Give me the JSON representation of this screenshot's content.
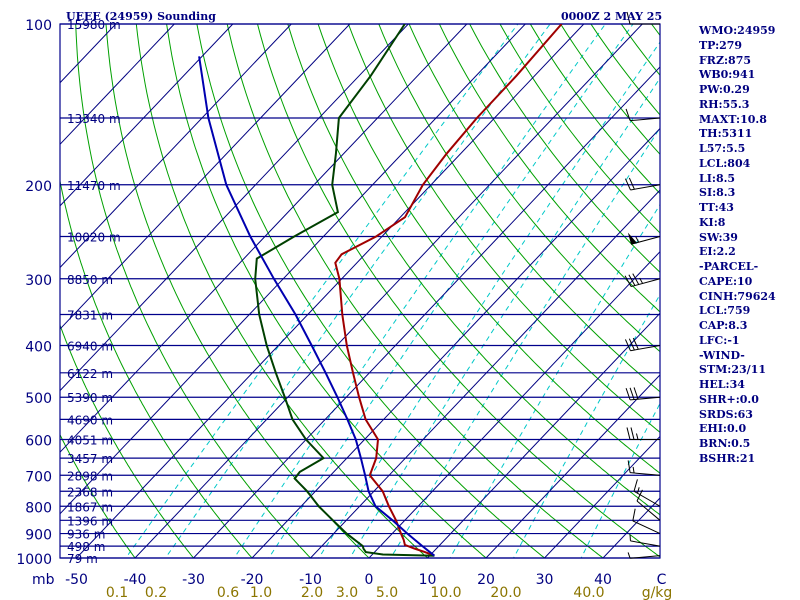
{
  "header": {
    "title_left": "UEEE (24959) Sounding",
    "title_right": "0000Z  2 MAY 25"
  },
  "indices": [
    "WMO:24959",
    "TP:279",
    "FRZ:875",
    "WB0:941",
    "PW:0.29",
    "RH:55.3",
    "MAXT:10.8",
    "TH:5311",
    "L57:5.5",
    "LCL:804",
    "LI:8.5",
    "SI:8.3",
    "TT:43",
    "KI:8",
    "SW:39",
    "EI:2.2",
    "-PARCEL-",
    "CAPE:10",
    "CINH:79624",
    "LCL:759",
    "CAP:8.3",
    "LFC:-1",
    "-WIND-",
    "STM:23/11",
    "HEL:34",
    "SHR+:0.0",
    "SRDS:63",
    "EHI:0.0",
    "BRN:0.5",
    "BSHR:21"
  ],
  "colors": {
    "isobar": "#00008b",
    "isotherm": "#000080",
    "dry_adiabat": "#00a000",
    "mixing_ratio": "#00c8c8",
    "temperature": "#a00000",
    "dewpoint": "#004000",
    "parcel": "#0000b0",
    "text": "#000080",
    "mixratio_label": "#8b7500"
  },
  "chart_data": {
    "type": "line",
    "title": "UEEE (24959) Sounding",
    "xlabel": "C",
    "ylabel": "mb",
    "ylim": [
      1000,
      100
    ],
    "xlim": [
      -50,
      50
    ],
    "grid": true,
    "pressure_ticks": [
      100,
      200,
      300,
      400,
      500,
      600,
      700,
      800,
      900,
      1000
    ],
    "temperature_ticks": [
      "-50",
      "-40",
      "-30",
      "-20",
      "-10",
      "0",
      "10",
      "20",
      "30",
      "40",
      "C"
    ],
    "mixing_ratio_ticks": [
      "0.1",
      "0.2",
      "0.6",
      "1.0",
      "2.0",
      "3.0",
      "5.0",
      "10.0",
      "20.0",
      "40.0",
      "g/kg"
    ],
    "height_labels": [
      {
        "p": 100,
        "label": "15980 m"
      },
      {
        "p": 150,
        "label": "13340 m"
      },
      {
        "p": 200,
        "label": "11470 m"
      },
      {
        "p": 250,
        "label": "10020 m"
      },
      {
        "p": 300,
        "label": "8850 m"
      },
      {
        "p": 350,
        "label": "7831 m"
      },
      {
        "p": 400,
        "label": "6940 m"
      },
      {
        "p": 450,
        "label": "6122 m"
      },
      {
        "p": 500,
        "label": "5390 m"
      },
      {
        "p": 550,
        "label": "4690 m"
      },
      {
        "p": 600,
        "label": "4051 m"
      },
      {
        "p": 650,
        "label": "3457 m"
      },
      {
        "p": 700,
        "label": "2898 m"
      },
      {
        "p": 750,
        "label": "2368 m"
      },
      {
        "p": 800,
        "label": "1867 m"
      },
      {
        "p": 850,
        "label": "1396 m"
      },
      {
        "p": 900,
        "label": "936 m"
      },
      {
        "p": 950,
        "label": "498 m"
      },
      {
        "p": 1000,
        "label": "79 m"
      }
    ],
    "series": [
      {
        "name": "temperature",
        "points": [
          {
            "p": 990,
            "t": 10.8
          },
          {
            "p": 975,
            "t": 8.6
          },
          {
            "p": 960,
            "t": 6.2
          },
          {
            "p": 945,
            "t": 4.0
          },
          {
            "p": 925,
            "t": 3.0
          },
          {
            "p": 900,
            "t": 1.5
          },
          {
            "p": 850,
            "t": -1.5
          },
          {
            "p": 800,
            "t": -5.0
          },
          {
            "p": 750,
            "t": -8.5
          },
          {
            "p": 700,
            "t": -13.3
          },
          {
            "p": 650,
            "t": -15.0
          },
          {
            "p": 600,
            "t": -17.7
          },
          {
            "p": 550,
            "t": -23.1
          },
          {
            "p": 500,
            "t": -27.8
          },
          {
            "p": 450,
            "t": -32.8
          },
          {
            "p": 400,
            "t": -38.3
          },
          {
            "p": 350,
            "t": -44.1
          },
          {
            "p": 300,
            "t": -50.4
          },
          {
            "p": 280,
            "t": -53.7
          },
          {
            "p": 270,
            "t": -54.0
          },
          {
            "p": 250,
            "t": -51.0
          },
          {
            "p": 230,
            "t": -49.2
          },
          {
            "p": 200,
            "t": -51.4
          },
          {
            "p": 175,
            "t": -52.4
          },
          {
            "p": 150,
            "t": -53.0
          },
          {
            "p": 125,
            "t": -53.1
          },
          {
            "p": 100,
            "t": -53.8
          }
        ]
      },
      {
        "name": "dewpoint",
        "points": [
          {
            "p": 990,
            "t": 10.8
          },
          {
            "p": 985,
            "t": 1.8
          },
          {
            "p": 975,
            "t": -1.5
          },
          {
            "p": 960,
            "t": -2.5
          },
          {
            "p": 950,
            "t": -3.0
          },
          {
            "p": 900,
            "t": -7.8
          },
          {
            "p": 850,
            "t": -12.3
          },
          {
            "p": 800,
            "t": -17.0
          },
          {
            "p": 750,
            "t": -21.4
          },
          {
            "p": 710,
            "t": -25.6
          },
          {
            "p": 690,
            "t": -25.8
          },
          {
            "p": 650,
            "t": -24.0
          },
          {
            "p": 600,
            "t": -30.0
          },
          {
            "p": 550,
            "t": -35.6
          },
          {
            "p": 500,
            "t": -40.5
          },
          {
            "p": 450,
            "t": -46.0
          },
          {
            "p": 400,
            "t": -52.0
          },
          {
            "p": 350,
            "t": -58.3
          },
          {
            "p": 300,
            "t": -64.8
          },
          {
            "p": 275,
            "t": -67.8
          },
          {
            "p": 250,
            "t": -65.0
          },
          {
            "p": 225,
            "t": -61.5
          },
          {
            "p": 200,
            "t": -66.9
          },
          {
            "p": 175,
            "t": -71.3
          },
          {
            "p": 150,
            "t": -76.6
          },
          {
            "p": 125,
            "t": -78.0
          },
          {
            "p": 100,
            "t": -80.6
          }
        ]
      },
      {
        "name": "parcel",
        "points": [
          {
            "p": 990,
            "t": 10.8
          },
          {
            "p": 950,
            "t": 7.2
          },
          {
            "p": 900,
            "t": 2.6
          },
          {
            "p": 850,
            "t": -2.1
          },
          {
            "p": 800,
            "t": -7.3
          },
          {
            "p": 750,
            "t": -10.9
          },
          {
            "p": 700,
            "t": -14.1
          },
          {
            "p": 650,
            "t": -17.6
          },
          {
            "p": 600,
            "t": -21.5
          },
          {
            "p": 550,
            "t": -26.2
          },
          {
            "p": 500,
            "t": -31.5
          },
          {
            "p": 450,
            "t": -37.5
          },
          {
            "p": 400,
            "t": -44.3
          },
          {
            "p": 350,
            "t": -52.1
          },
          {
            "p": 300,
            "t": -61.6
          },
          {
            "p": 250,
            "t": -72.5
          },
          {
            "p": 200,
            "t": -85.0
          },
          {
            "p": 150,
            "t": -98.9
          },
          {
            "p": 115,
            "t": -110.5
          }
        ]
      }
    ],
    "wind_barbs": [
      {
        "p": 990,
        "dir": 265,
        "speed": 5
      },
      {
        "p": 950,
        "dir": 280,
        "speed": 5
      },
      {
        "p": 900,
        "dir": 295,
        "speed": 10
      },
      {
        "p": 850,
        "dir": 310,
        "speed": 10
      },
      {
        "p": 800,
        "dir": 300,
        "speed": 15
      },
      {
        "p": 700,
        "dir": 275,
        "speed": 15
      },
      {
        "p": 600,
        "dir": 270,
        "speed": 25
      },
      {
        "p": 500,
        "dir": 265,
        "speed": 30
      },
      {
        "p": 400,
        "dir": 260,
        "speed": 30
      },
      {
        "p": 300,
        "dir": 255,
        "speed": 35
      },
      {
        "p": 250,
        "dir": 255,
        "speed": 55
      },
      {
        "p": 200,
        "dir": 260,
        "speed": 20
      },
      {
        "p": 150,
        "dir": 265,
        "speed": 10
      },
      {
        "p": 100,
        "dir": 270,
        "speed": 10
      }
    ]
  }
}
